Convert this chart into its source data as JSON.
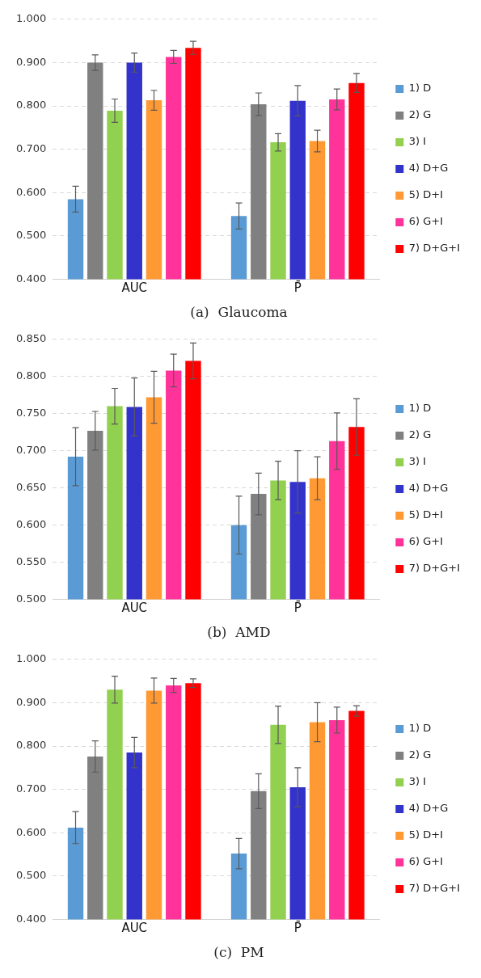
{
  "chart_data": [
    {
      "type": "bar",
      "title": "(a)  Glaucoma",
      "categories": [
        "AUC",
        "P̄"
      ],
      "ylim": [
        0.4,
        1.0
      ],
      "yticks": [
        {
          "value": 0.4,
          "label": "0.400"
        },
        {
          "value": 0.5,
          "label": "0.500"
        },
        {
          "value": 0.6,
          "label": "0.600"
        },
        {
          "value": 0.7,
          "label": "0.700"
        },
        {
          "value": 0.8,
          "label": "0.800"
        },
        {
          "value": 0.9,
          "label": "0.900"
        },
        {
          "value": 1.0,
          "label": "1.000"
        }
      ],
      "grid": "y",
      "legend": "right",
      "series": [
        {
          "name": "1) D",
          "color": "#5b9bd5",
          "values": [
            0.585,
            0.546
          ],
          "errors": [
            0.03,
            0.03
          ]
        },
        {
          "name": "2) G",
          "color": "#808080",
          "values": [
            0.9,
            0.804
          ],
          "errors": [
            0.018,
            0.026
          ]
        },
        {
          "name": "3) I",
          "color": "#92d050",
          "values": [
            0.789,
            0.716
          ],
          "errors": [
            0.027,
            0.02
          ]
        },
        {
          "name": "4) D+G",
          "color": "#3333cc",
          "values": [
            0.9,
            0.812
          ],
          "errors": [
            0.022,
            0.035
          ]
        },
        {
          "name": "5) D+I",
          "color": "#ff9933",
          "values": [
            0.813,
            0.719
          ],
          "errors": [
            0.023,
            0.025
          ]
        },
        {
          "name": "6) G+I",
          "color": "#ff3399",
          "values": [
            0.913,
            0.815
          ],
          "errors": [
            0.015,
            0.024
          ]
        },
        {
          "name": "7) D+G+I",
          "color": "#ff0000",
          "values": [
            0.934,
            0.853
          ],
          "errors": [
            0.015,
            0.022
          ]
        }
      ]
    },
    {
      "type": "bar",
      "title": "(b)  AMD",
      "categories": [
        "AUC",
        "P̄"
      ],
      "ylim": [
        0.5,
        0.85
      ],
      "yticks": [
        {
          "value": 0.5,
          "label": "0.500"
        },
        {
          "value": 0.55,
          "label": "0.550"
        },
        {
          "value": 0.6,
          "label": "0.600"
        },
        {
          "value": 0.65,
          "label": "0.650"
        },
        {
          "value": 0.7,
          "label": "0.700"
        },
        {
          "value": 0.75,
          "label": "0.750"
        },
        {
          "value": 0.8,
          "label": "0.800"
        },
        {
          "value": 0.85,
          "label": "0.850"
        }
      ],
      "grid": "y",
      "legend": "right",
      "series": [
        {
          "name": "1) D",
          "color": "#5b9bd5",
          "values": [
            0.692,
            0.6
          ],
          "errors": [
            0.039,
            0.039
          ]
        },
        {
          "name": "2) G",
          "color": "#808080",
          "values": [
            0.727,
            0.642
          ],
          "errors": [
            0.026,
            0.028
          ]
        },
        {
          "name": "3) I",
          "color": "#92d050",
          "values": [
            0.76,
            0.66
          ],
          "errors": [
            0.024,
            0.026
          ]
        },
        {
          "name": "4) D+G",
          "color": "#3333cc",
          "values": [
            0.759,
            0.658
          ],
          "errors": [
            0.039,
            0.042
          ]
        },
        {
          "name": "5) D+I",
          "color": "#ff9933",
          "values": [
            0.772,
            0.663
          ],
          "errors": [
            0.035,
            0.029
          ]
        },
        {
          "name": "6) G+I",
          "color": "#ff3399",
          "values": [
            0.808,
            0.713
          ],
          "errors": [
            0.022,
            0.038
          ]
        },
        {
          "name": "7) D+G+I",
          "color": "#ff0000",
          "values": [
            0.821,
            0.732
          ],
          "errors": [
            0.024,
            0.038
          ]
        }
      ]
    },
    {
      "type": "bar",
      "title": "(c)  PM",
      "categories": [
        "AUC",
        "P̄"
      ],
      "ylim": [
        0.4,
        1.0
      ],
      "yticks": [
        {
          "value": 0.4,
          "label": "0.400"
        },
        {
          "value": 0.5,
          "label": "0.500"
        },
        {
          "value": 0.6,
          "label": "0.600"
        },
        {
          "value": 0.7,
          "label": "0.700"
        },
        {
          "value": 0.8,
          "label": "0.800"
        },
        {
          "value": 0.9,
          "label": "0.900"
        },
        {
          "value": 1.0,
          "label": "1.000"
        }
      ],
      "grid": "y",
      "legend": "right",
      "series": [
        {
          "name": "1) D",
          "color": "#5b9bd5",
          "values": [
            0.612,
            0.552
          ],
          "errors": [
            0.037,
            0.035
          ]
        },
        {
          "name": "2) G",
          "color": "#808080",
          "values": [
            0.776,
            0.696
          ],
          "errors": [
            0.036,
            0.04
          ]
        },
        {
          "name": "3) I",
          "color": "#92d050",
          "values": [
            0.93,
            0.849
          ],
          "errors": [
            0.031,
            0.043
          ]
        },
        {
          "name": "4) D+G",
          "color": "#3333cc",
          "values": [
            0.785,
            0.705
          ],
          "errors": [
            0.035,
            0.045
          ]
        },
        {
          "name": "5) D+I",
          "color": "#ff9933",
          "values": [
            0.928,
            0.855
          ],
          "errors": [
            0.029,
            0.045
          ]
        },
        {
          "name": "6) G+I",
          "color": "#ff3399",
          "values": [
            0.94,
            0.86
          ],
          "errors": [
            0.016,
            0.03
          ]
        },
        {
          "name": "7) D+G+I",
          "color": "#ff0000",
          "values": [
            0.945,
            0.881
          ],
          "errors": [
            0.01,
            0.012
          ]
        }
      ]
    }
  ]
}
